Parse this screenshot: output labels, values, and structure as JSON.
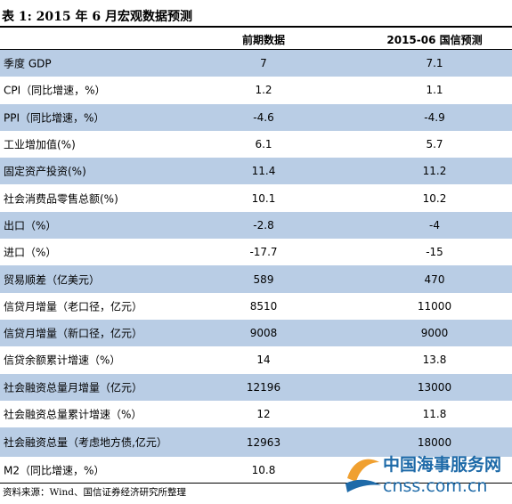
{
  "table": {
    "title": "表 1:  2015 年 6 月宏观数据预测",
    "columns": [
      "",
      "前期数据",
      "2015-06 国信预测"
    ],
    "rows": [
      {
        "label": "季度 GDP",
        "prev": "7",
        "forecast": "7.1"
      },
      {
        "label": "CPI（同比增速，%）",
        "prev": "1.2",
        "forecast": "1.1"
      },
      {
        "label": "PPI（同比增速，%）",
        "prev": "-4.6",
        "forecast": "-4.9"
      },
      {
        "label": "工业增加值(%)",
        "prev": "6.1",
        "forecast": "5.7"
      },
      {
        "label": "固定资产投资(%)",
        "prev": "11.4",
        "forecast": "11.2"
      },
      {
        "label": "社会消费品零售总额(%)",
        "prev": "10.1",
        "forecast": "10.2"
      },
      {
        "label": "出口（%）",
        "prev": "-2.8",
        "forecast": "-4"
      },
      {
        "label": "进口（%）",
        "prev": "-17.7",
        "forecast": "-15"
      },
      {
        "label": "贸易顺差（亿美元）",
        "prev": "589",
        "forecast": "470"
      },
      {
        "label": "信贷月增量（老口径，亿元）",
        "prev": "8510",
        "forecast": "11000"
      },
      {
        "label": "信贷月增量（新口径，亿元）",
        "prev": "9008",
        "forecast": "9000"
      },
      {
        "label": "信贷余额累计增速（%）",
        "prev": "14",
        "forecast": "13.8"
      },
      {
        "label": "社会融资总量月增量（亿元）",
        "prev": "12196",
        "forecast": "13000"
      },
      {
        "label": "社会融资总量累计增速（%）",
        "prev": "12",
        "forecast": "11.8"
      },
      {
        "label": "社会融资总量（考虑地方债,亿元）",
        "prev": "12963",
        "forecast": "18000"
      },
      {
        "label": "M2（同比增速，%）",
        "prev": "10.8",
        "forecast": ""
      }
    ],
    "source": "资料来源：Wind、国信证券经济研究所整理"
  },
  "watermark": {
    "text_cn": "中国海事服务网",
    "url": "cnss.com.cn"
  },
  "colors": {
    "shaded_row": "#b9cde5",
    "watermark_blue": "#1e6aa8",
    "watermark_orange": "#f0a030"
  }
}
